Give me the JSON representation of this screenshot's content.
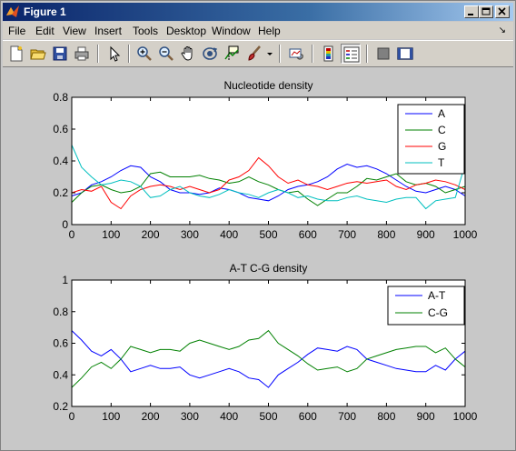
{
  "window": {
    "title": "Figure 1",
    "controls": [
      "minimize",
      "maximize",
      "close"
    ]
  },
  "menu": {
    "items": [
      "File",
      "Edit",
      "View",
      "Insert",
      "Tools",
      "Desktop",
      "Window",
      "Help"
    ],
    "dock_arrow": "↘"
  },
  "toolbar": {
    "buttons": [
      "new-figure-icon",
      "open-file-icon",
      "save-icon",
      "print-icon",
      "edit-plot-arrow-icon",
      "zoom-in-icon",
      "zoom-out-icon",
      "pan-hand-icon",
      "rotate-3d-icon",
      "data-cursor-icon",
      "brush-icon",
      "link-plot-icon",
      "insert-colorbar-icon",
      "insert-legend-icon",
      "hide-plot-tools-icon",
      "show-plot-tools-icon"
    ]
  },
  "colors": {
    "A": "#0000ff",
    "C": "#008000",
    "G": "#ff0000",
    "T": "#00bfbf",
    "AT": "#0000ff",
    "CG": "#008000"
  },
  "chart_data": [
    {
      "type": "line",
      "title": "Nucleotide density",
      "xlabel": "",
      "ylabel": "",
      "xlim": [
        0,
        1000
      ],
      "ylim": [
        0,
        0.8
      ],
      "xticks": [
        "0",
        "100",
        "200",
        "300",
        "400",
        "500",
        "600",
        "700",
        "800",
        "900",
        "1000"
      ],
      "yticks": [
        "0",
        "0.2",
        "0.4",
        "0.6",
        "0.8"
      ],
      "legend_position": "top-right",
      "x": [
        0,
        25,
        50,
        75,
        100,
        125,
        150,
        175,
        200,
        225,
        250,
        275,
        300,
        325,
        350,
        375,
        400,
        425,
        450,
        475,
        500,
        525,
        550,
        575,
        600,
        625,
        650,
        675,
        700,
        725,
        750,
        775,
        800,
        825,
        850,
        875,
        900,
        925,
        950,
        975,
        1000
      ],
      "series": [
        {
          "name": "A",
          "color_key": "A",
          "values": [
            0.18,
            0.2,
            0.25,
            0.27,
            0.3,
            0.34,
            0.37,
            0.36,
            0.3,
            0.27,
            0.22,
            0.2,
            0.2,
            0.19,
            0.2,
            0.23,
            0.22,
            0.2,
            0.17,
            0.16,
            0.15,
            0.18,
            0.22,
            0.24,
            0.25,
            0.27,
            0.3,
            0.35,
            0.38,
            0.36,
            0.37,
            0.35,
            0.32,
            0.28,
            0.24,
            0.21,
            0.2,
            0.22,
            0.24,
            0.22,
            0.18
          ]
        },
        {
          "name": "C",
          "color_key": "C",
          "values": [
            0.14,
            0.2,
            0.24,
            0.25,
            0.22,
            0.2,
            0.21,
            0.24,
            0.32,
            0.33,
            0.3,
            0.3,
            0.3,
            0.31,
            0.29,
            0.28,
            0.26,
            0.27,
            0.3,
            0.27,
            0.25,
            0.22,
            0.2,
            0.21,
            0.16,
            0.12,
            0.16,
            0.2,
            0.2,
            0.24,
            0.29,
            0.28,
            0.3,
            0.32,
            0.27,
            0.25,
            0.26,
            0.24,
            0.2,
            0.22,
            0.24
          ]
        },
        {
          "name": "G",
          "color_key": "G",
          "values": [
            0.2,
            0.22,
            0.21,
            0.24,
            0.14,
            0.1,
            0.18,
            0.22,
            0.24,
            0.25,
            0.24,
            0.22,
            0.24,
            0.22,
            0.2,
            0.22,
            0.28,
            0.3,
            0.34,
            0.42,
            0.37,
            0.3,
            0.26,
            0.28,
            0.25,
            0.24,
            0.22,
            0.24,
            0.26,
            0.27,
            0.26,
            0.27,
            0.28,
            0.24,
            0.22,
            0.25,
            0.26,
            0.28,
            0.27,
            0.25,
            0.22
          ]
        },
        {
          "name": "T",
          "color_key": "T",
          "values": [
            0.5,
            0.36,
            0.3,
            0.25,
            0.26,
            0.28,
            0.27,
            0.24,
            0.17,
            0.18,
            0.22,
            0.24,
            0.2,
            0.18,
            0.17,
            0.19,
            0.22,
            0.2,
            0.19,
            0.17,
            0.2,
            0.22,
            0.2,
            0.17,
            0.18,
            0.16,
            0.15,
            0.15,
            0.17,
            0.18,
            0.16,
            0.15,
            0.14,
            0.16,
            0.17,
            0.17,
            0.1,
            0.15,
            0.16,
            0.17,
            0.38
          ]
        }
      ]
    },
    {
      "type": "line",
      "title": "A-T C-G density",
      "xlabel": "",
      "ylabel": "",
      "xlim": [
        0,
        1000
      ],
      "ylim": [
        0.2,
        1
      ],
      "xticks": [
        "0",
        "100",
        "200",
        "300",
        "400",
        "500",
        "600",
        "700",
        "800",
        "900",
        "1000"
      ],
      "yticks": [
        "0.2",
        "0.4",
        "0.6",
        "0.8",
        "1"
      ],
      "legend_position": "top-right",
      "x": [
        0,
        25,
        50,
        75,
        100,
        125,
        150,
        175,
        200,
        225,
        250,
        275,
        300,
        325,
        350,
        375,
        400,
        425,
        450,
        475,
        500,
        525,
        550,
        575,
        600,
        625,
        650,
        675,
        700,
        725,
        750,
        775,
        800,
        825,
        850,
        875,
        900,
        925,
        950,
        975,
        1000
      ],
      "series": [
        {
          "name": "A-T",
          "color_key": "AT",
          "values": [
            0.68,
            0.62,
            0.55,
            0.52,
            0.56,
            0.5,
            0.42,
            0.44,
            0.46,
            0.44,
            0.44,
            0.45,
            0.4,
            0.38,
            0.4,
            0.42,
            0.44,
            0.42,
            0.38,
            0.37,
            0.32,
            0.4,
            0.44,
            0.48,
            0.53,
            0.57,
            0.56,
            0.55,
            0.58,
            0.56,
            0.5,
            0.48,
            0.46,
            0.44,
            0.43,
            0.42,
            0.42,
            0.46,
            0.43,
            0.5,
            0.55
          ]
        },
        {
          "name": "C-G",
          "color_key": "CG",
          "values": [
            0.32,
            0.38,
            0.45,
            0.48,
            0.44,
            0.5,
            0.58,
            0.56,
            0.54,
            0.56,
            0.56,
            0.55,
            0.6,
            0.62,
            0.6,
            0.58,
            0.56,
            0.58,
            0.62,
            0.63,
            0.68,
            0.6,
            0.56,
            0.52,
            0.47,
            0.43,
            0.44,
            0.45,
            0.42,
            0.44,
            0.5,
            0.52,
            0.54,
            0.56,
            0.57,
            0.58,
            0.58,
            0.54,
            0.57,
            0.5,
            0.45
          ]
        }
      ]
    }
  ]
}
